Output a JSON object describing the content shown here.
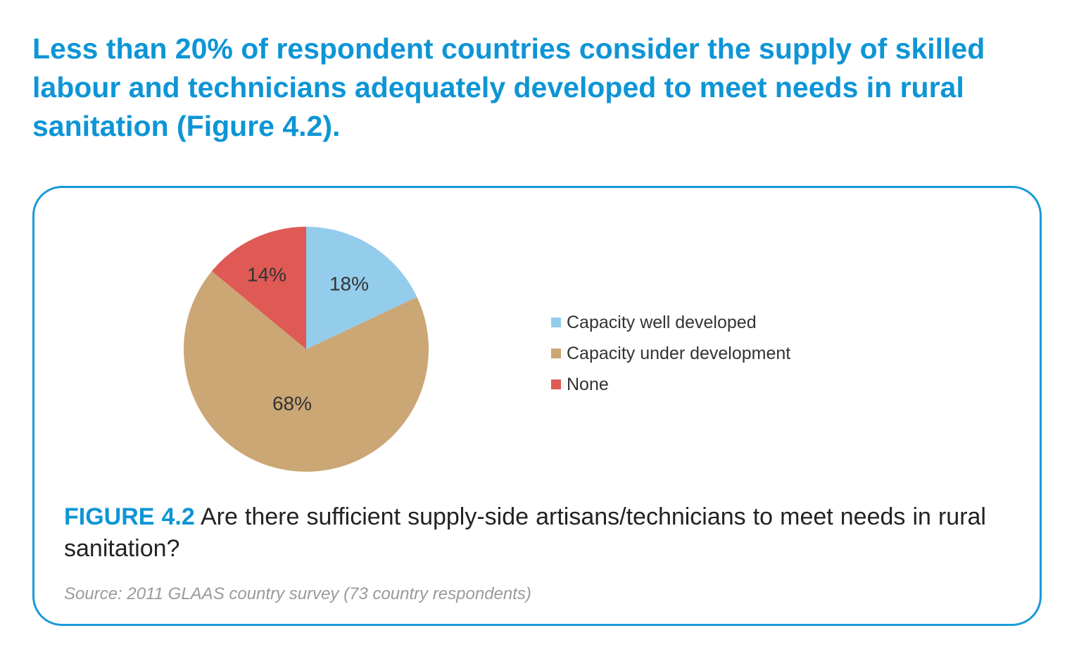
{
  "headline": "Less than 20% of respondent countries consider the supply of skilled labour and technicians adequately developed to meet needs in rural sanitation (Figure 4.2).",
  "caption": {
    "figure_label": "FIGURE 4.2",
    "text": "Are there sufficient supply-side artisans/technicians to meet needs in rural sanitation?"
  },
  "source": "Source: 2011 GLAAS country survey (73 country respondents)",
  "colors": {
    "accent": "#0d95d6",
    "card_border": "#1a9ad8"
  },
  "chart_data": {
    "type": "pie",
    "legend_position": "right",
    "slices": [
      {
        "name": "Capacity well developed",
        "value": 18,
        "label": "18%",
        "color": "#94ccec"
      },
      {
        "name": "Capacity under development",
        "value": 68,
        "label": "68%",
        "color": "#cba775"
      },
      {
        "name": "None",
        "value": 14,
        "label": "14%",
        "color": "#df5a55"
      }
    ]
  }
}
